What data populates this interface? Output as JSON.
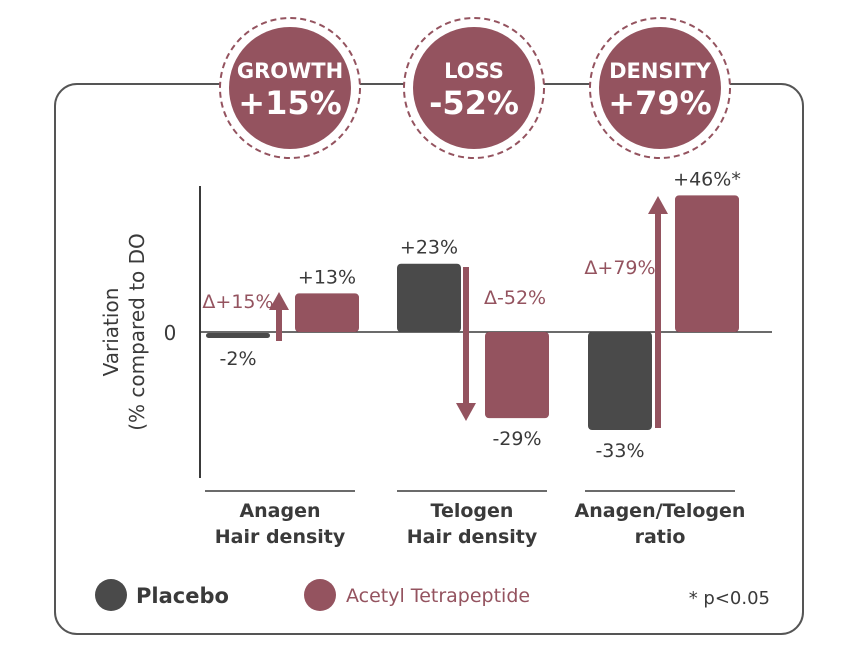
{
  "badges": [
    {
      "label": "GROWTH",
      "value": "+15%"
    },
    {
      "label": "LOSS",
      "value": "-52%"
    },
    {
      "label": "DENSITY",
      "value": "+79%"
    }
  ],
  "colors": {
    "placebo": "#4a4a4a",
    "active": "#94535f",
    "axis": "#3a3a3a",
    "text": "#3a3a3a",
    "frame": "#555555"
  },
  "chart_data": {
    "type": "bar",
    "ylabel": [
      "Variation",
      "(% compared to DO"
    ],
    "zero_label": "0",
    "ylim": [
      -45,
      55
    ],
    "categories": [
      [
        "Anagen",
        "Hair density"
      ],
      [
        "Telogen",
        "Hair density"
      ],
      [
        "Anagen/Telogen",
        "ratio"
      ]
    ],
    "series": [
      {
        "name": "Placebo",
        "values": [
          -2,
          23,
          -33
        ],
        "labels": [
          "-2%",
          "+23%",
          "-33%"
        ]
      },
      {
        "name": "Acetyl Tetrapeptide",
        "values": [
          13,
          -29,
          46
        ],
        "labels": [
          "+13%",
          "-29%",
          "+46%*"
        ]
      }
    ],
    "deltas": [
      {
        "label": "Δ+15%",
        "value": 15
      },
      {
        "label": "Δ-52%",
        "value": -52
      },
      {
        "label": "Δ+79%",
        "value": 79
      }
    ],
    "legend": {
      "position": "bottom",
      "items": [
        "Placebo",
        "Acetyl Tetrapeptide"
      ]
    },
    "footnote": "* p<0.05",
    "grid": false
  }
}
